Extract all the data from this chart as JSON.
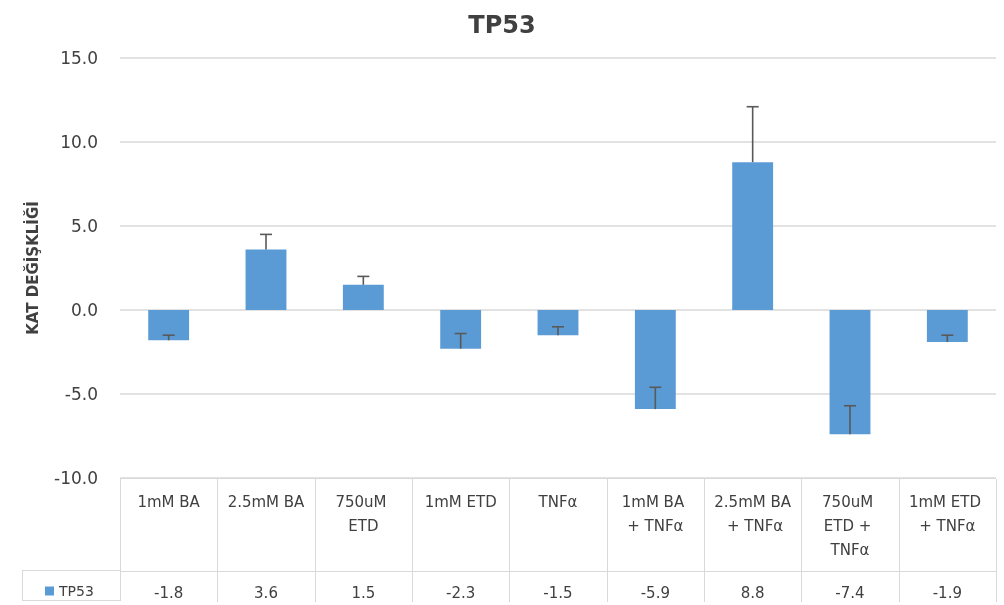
{
  "chart_data": {
    "type": "bar",
    "title": "TP53",
    "ylabel": "KAT DEĞİŞKLİĞİ",
    "categories": [
      "1mM BA",
      "2.5mM BA",
      "750uM ETD",
      "1mM ETD",
      "TNFα",
      "1mM BA + TNFα",
      "2.5mM BA + TNFα",
      "750uM ETD + TNFα",
      "1mM ETD + TNFα"
    ],
    "series": [
      {
        "name": "TP53",
        "color": "#5b9bd5",
        "values": [
          -1.8,
          3.6,
          1.5,
          -2.3,
          -1.5,
          -5.9,
          8.8,
          -7.4,
          -1.9
        ],
        "errors": [
          [
            -1.8,
            -1.5
          ],
          [
            3.6,
            4.5
          ],
          [
            1.5,
            2.0
          ],
          [
            -2.3,
            -1.4
          ],
          [
            -1.5,
            -1.0
          ],
          [
            -5.9,
            -4.6
          ],
          [
            8.8,
            12.1
          ],
          [
            -7.4,
            -5.7
          ],
          [
            -1.9,
            -1.5
          ]
        ]
      }
    ],
    "ylim": [
      -10,
      15
    ],
    "yticks": [
      {
        "value": -10,
        "label": "-10.0"
      },
      {
        "value": -5,
        "label": "-5.0"
      },
      {
        "value": 0,
        "label": "0.0"
      },
      {
        "value": 5,
        "label": "5.0"
      },
      {
        "value": 10,
        "label": "10.0"
      },
      {
        "value": 15,
        "label": "15.0"
      }
    ],
    "grid": "y",
    "legend": "bottom left",
    "data_labels": true
  }
}
